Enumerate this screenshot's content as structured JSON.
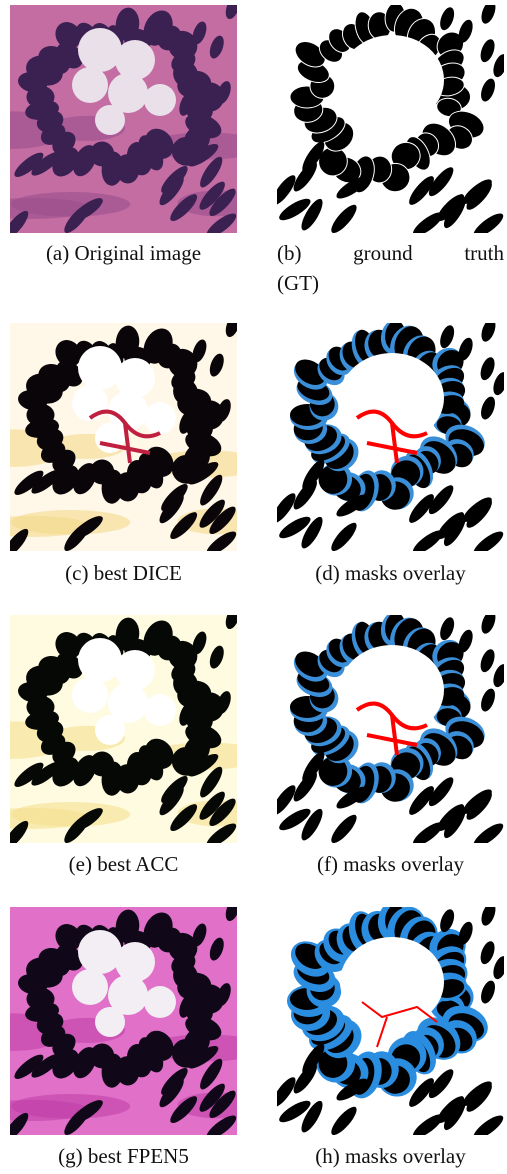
{
  "figure": {
    "panels": [
      {
        "caption": "(a) Original image"
      },
      {
        "caption_lines": [
          "(b) ground truth",
          "(GT)"
        ]
      },
      {
        "caption": "(c) best DICE"
      },
      {
        "caption": "(d) masks overlay"
      },
      {
        "caption": "(e) best ACC"
      },
      {
        "caption": "(f) masks overlay"
      },
      {
        "caption": "(g) best FPEN5"
      },
      {
        "caption": "(h) masks overlay"
      }
    ]
  }
}
